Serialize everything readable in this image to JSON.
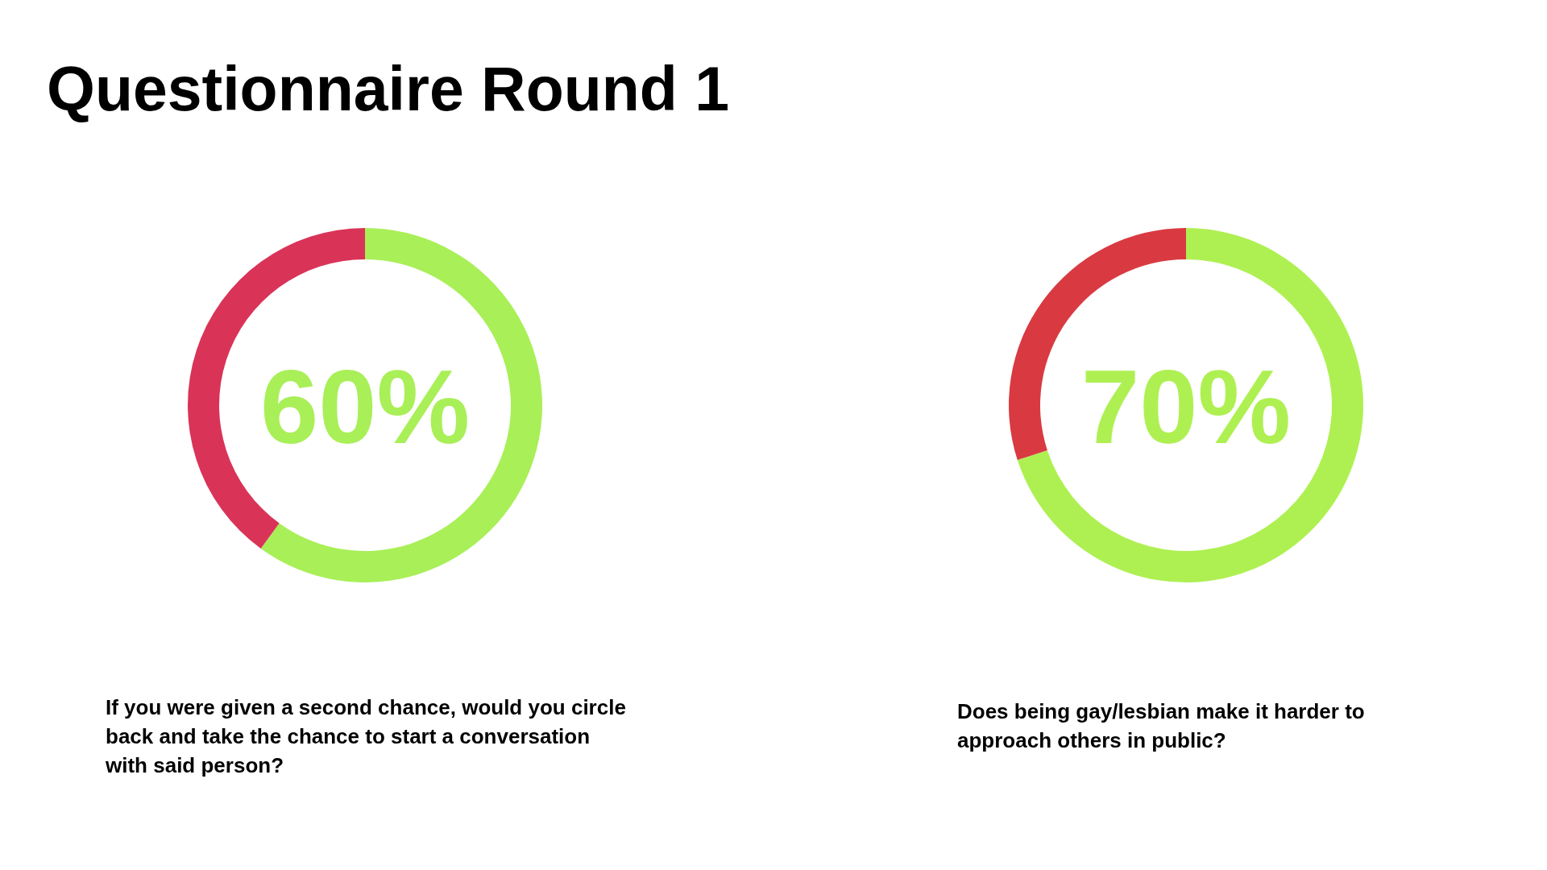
{
  "chart_data": [
    {
      "type": "donut",
      "title": "Questionnaire Round 1",
      "categories": [
        null,
        null
      ],
      "values": [
        60,
        40
      ],
      "colors": [
        "#a9ef58",
        "#da3358"
      ],
      "value_labels": [
        "60%",
        null
      ],
      "annotations": [
        "If you were given a second chance, would you circle back and take the chance to start a conversation with said person?"
      ]
    },
    {
      "type": "donut",
      "categories": [
        null,
        null
      ],
      "values": [
        70,
        30
      ],
      "colors": [
        "#aef052",
        "#d93a42"
      ],
      "value_labels": [
        "70%",
        null
      ],
      "annotations": [
        "Does being gay/lesbian make it harder to approach others in public?"
      ]
    }
  ]
}
